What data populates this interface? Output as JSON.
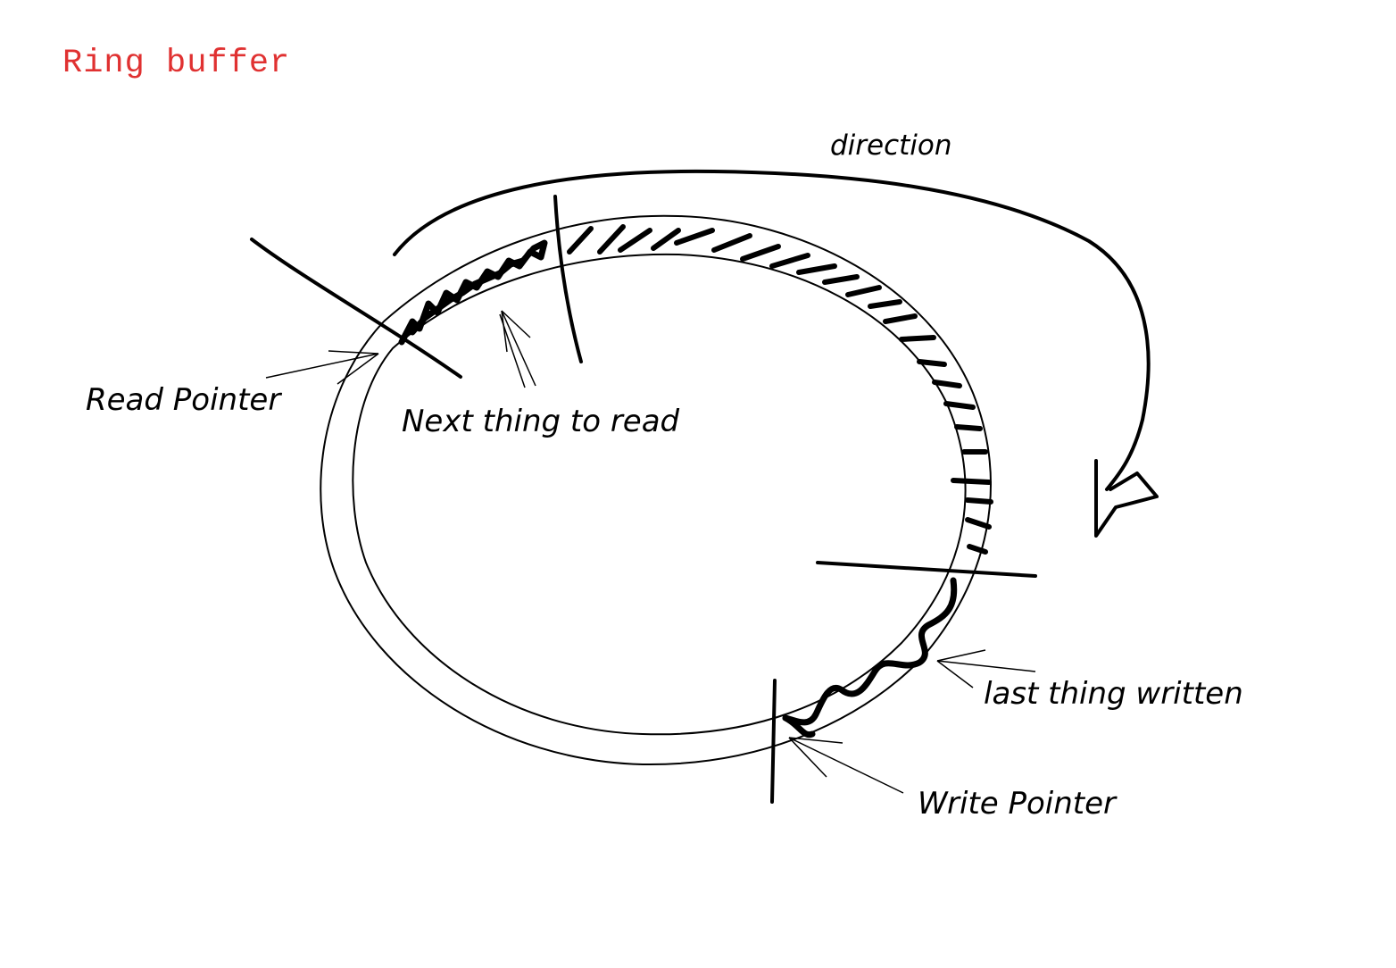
{
  "title": "Ring buffer",
  "labels": {
    "read_pointer": "Read Pointer",
    "next_thing_to_read": "Next thing to read",
    "direction": "direction",
    "last_thing_written": "last thing written",
    "write_pointer": "Write Pointer"
  },
  "colors": {
    "title": "#e03131",
    "ink": "#000000",
    "background": "#ffffff"
  }
}
